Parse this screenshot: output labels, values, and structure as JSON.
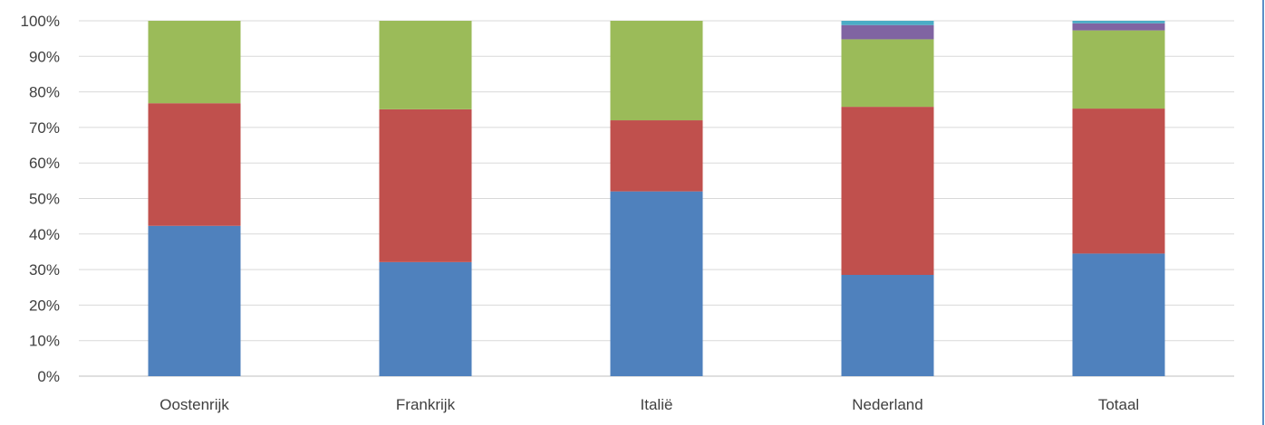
{
  "chart_data": {
    "type": "bar",
    "stacked": true,
    "percent": true,
    "title": "",
    "xlabel": "",
    "ylabel": "",
    "ylim": [
      0,
      100
    ],
    "yticks": [
      "0%",
      "10%",
      "20%",
      "30%",
      "40%",
      "50%",
      "60%",
      "70%",
      "80%",
      "90%",
      "100%"
    ],
    "grid": true,
    "legend": "none",
    "categories": [
      "Oostenrijk",
      "Frankrijk",
      "Italië",
      "Nederland",
      "Totaal"
    ],
    "series": [
      {
        "color": "#4f81bd",
        "values": [
          42.3,
          32.1,
          52.0,
          28.5,
          34.5
        ]
      },
      {
        "color": "#c0504d",
        "values": [
          34.5,
          43.0,
          20.0,
          47.3,
          40.8
        ]
      },
      {
        "color": "#9bbb59",
        "values": [
          23.2,
          24.9,
          28.0,
          19.0,
          22.0
        ]
      },
      {
        "color": "#8064a2",
        "values": [
          0,
          0,
          0,
          4.0,
          2.0
        ]
      },
      {
        "color": "#4bacc6",
        "values": [
          0,
          0,
          0,
          1.2,
          0.7
        ]
      }
    ]
  }
}
